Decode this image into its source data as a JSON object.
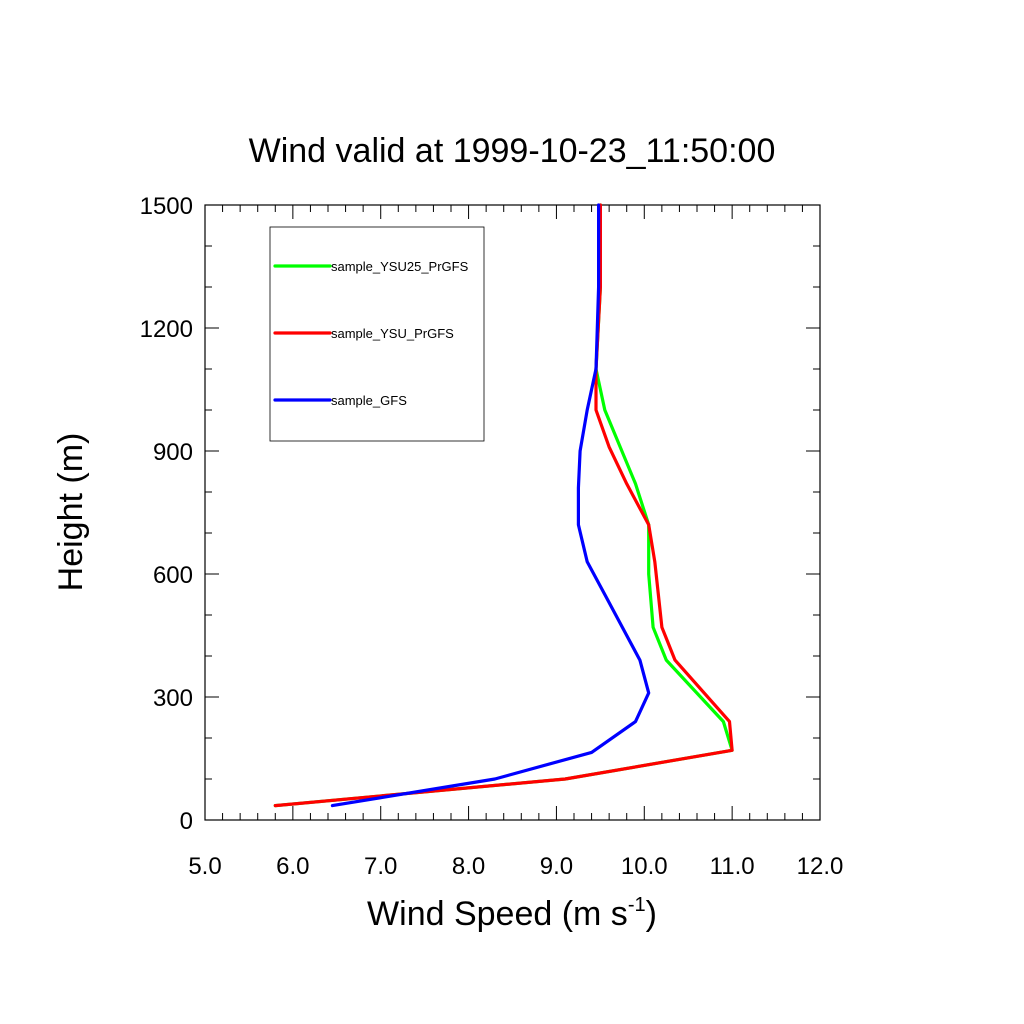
{
  "chart_data": {
    "type": "line",
    "title": "Wind valid at 1999-10-23_11:50:00",
    "xlabel": "Wind Speed (m s",
    "xlabel_superscript": "-1",
    "xlabel_suffix": ")",
    "ylabel": "Height (m)",
    "xlim": [
      5.0,
      12.0
    ],
    "ylim": [
      0,
      1500
    ],
    "x_ticks": [
      "5.0",
      "6.0",
      "7.0",
      "8.0",
      "9.0",
      "10.0",
      "11.0",
      "12.0"
    ],
    "y_ticks": [
      "0",
      "300",
      "600",
      "900",
      "1200",
      "1500"
    ],
    "legend_position": "top-left",
    "grid": false,
    "series": [
      {
        "name": "sample_YSU25_PrGFS",
        "color": "#00ff00",
        "points": [
          [
            5.8,
            35
          ],
          [
            9.1,
            100
          ],
          [
            11.0,
            170
          ],
          [
            10.9,
            240
          ],
          [
            10.25,
            390
          ],
          [
            10.1,
            470
          ],
          [
            10.05,
            600
          ],
          [
            10.05,
            720
          ],
          [
            9.9,
            820
          ],
          [
            9.55,
            1000
          ],
          [
            9.45,
            1100
          ],
          [
            9.5,
            1300
          ],
          [
            9.5,
            1500
          ]
        ]
      },
      {
        "name": "sample_YSU_PrGFS",
        "color": "#ff0000",
        "points": [
          [
            5.8,
            35
          ],
          [
            9.1,
            100
          ],
          [
            11.0,
            170
          ],
          [
            10.97,
            240
          ],
          [
            10.35,
            390
          ],
          [
            10.2,
            470
          ],
          [
            10.12,
            630
          ],
          [
            10.05,
            720
          ],
          [
            9.8,
            820
          ],
          [
            9.6,
            910
          ],
          [
            9.45,
            1000
          ],
          [
            9.45,
            1100
          ],
          [
            9.5,
            1300
          ],
          [
            9.5,
            1500
          ]
        ]
      },
      {
        "name": "sample_GFS",
        "color": "#0000ff",
        "points": [
          [
            6.45,
            35
          ],
          [
            8.3,
            100
          ],
          [
            9.4,
            165
          ],
          [
            9.9,
            240
          ],
          [
            10.05,
            310
          ],
          [
            9.95,
            390
          ],
          [
            9.55,
            550
          ],
          [
            9.35,
            630
          ],
          [
            9.25,
            720
          ],
          [
            9.25,
            810
          ],
          [
            9.27,
            900
          ],
          [
            9.35,
            1000
          ],
          [
            9.45,
            1100
          ],
          [
            9.48,
            1300
          ],
          [
            9.48,
            1500
          ]
        ]
      }
    ]
  }
}
